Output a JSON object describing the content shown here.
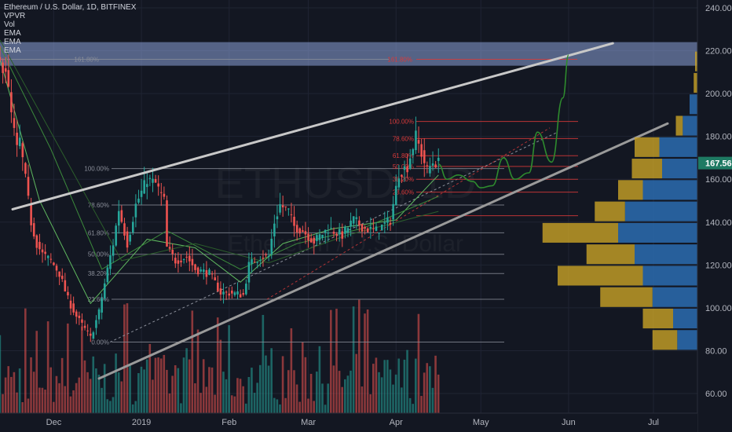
{
  "legend": {
    "symbol": "Ethereum / U.S. Dollar, 1D, BITFINEX",
    "indicators": [
      "VPVR",
      "Vol",
      "EMA",
      "EMA",
      "EMA"
    ]
  },
  "watermark": {
    "ticker": "ETHUSD, 1D",
    "name": "Ethereum / U.S. Dollar"
  },
  "price_badge": {
    "value": "167.56",
    "color": "#1e7a63"
  },
  "colors": {
    "up": "#26a69a",
    "down": "#ef5350",
    "channel": "#c8c8c8",
    "projection": "#2e8b2e",
    "zone": "#8da3d9",
    "fib_left": "#8a8e99",
    "fib_right": "#d93a3a",
    "vp_up": "#2b6cb0",
    "vp_down": "#c9a227"
  },
  "chart_data": {
    "type": "candlestick",
    "title": "Ethereum / U.S. Dollar, 1D, BITFINEX",
    "xlabel": "",
    "ylabel": "",
    "ylim": [
      52,
      245
    ],
    "y_ticks": [
      60,
      80,
      100,
      120,
      140,
      160,
      180,
      200,
      220,
      240
    ],
    "x_ticks": [
      "Dec",
      "2019",
      "Feb",
      "Mar",
      "Apr",
      "May",
      "Jun",
      "Jul"
    ],
    "last_price": 167.56,
    "price_path": [
      [
        "2018-11-12",
        214
      ],
      [
        "2018-11-14",
        212
      ],
      [
        "2018-11-16",
        190
      ],
      [
        "2018-11-18",
        174
      ],
      [
        "2018-11-19",
        178
      ],
      [
        "2018-11-21",
        160
      ],
      [
        "2018-11-23",
        140
      ],
      [
        "2018-11-25",
        130
      ],
      [
        "2018-11-27",
        125
      ],
      [
        "2018-11-30",
        122
      ],
      [
        "2018-12-03",
        116
      ],
      [
        "2018-12-06",
        104
      ],
      [
        "2018-12-09",
        96
      ],
      [
        "2018-12-11",
        92
      ],
      [
        "2018-12-14",
        86
      ],
      [
        "2018-12-17",
        98
      ],
      [
        "2018-12-20",
        118
      ],
      [
        "2018-12-22",
        130
      ],
      [
        "2018-12-24",
        146
      ],
      [
        "2018-12-27",
        130
      ],
      [
        "2018-12-30",
        148
      ],
      [
        "2019-01-03",
        160
      ],
      [
        "2019-01-06",
        158
      ],
      [
        "2019-01-09",
        150
      ],
      [
        "2019-01-10",
        128
      ],
      [
        "2019-01-13",
        122
      ],
      [
        "2019-01-17",
        124
      ],
      [
        "2019-01-20",
        118
      ],
      [
        "2019-01-25",
        116
      ],
      [
        "2019-01-29",
        107
      ],
      [
        "2019-02-01",
        107
      ],
      [
        "2019-02-06",
        106
      ],
      [
        "2019-02-08",
        120
      ],
      [
        "2019-02-12",
        124
      ],
      [
        "2019-02-15",
        124
      ],
      [
        "2019-02-17",
        140
      ],
      [
        "2019-02-19",
        148
      ],
      [
        "2019-02-22",
        145
      ],
      [
        "2019-02-24",
        138
      ],
      [
        "2019-02-27",
        136
      ],
      [
        "2019-03-03",
        131
      ],
      [
        "2019-03-08",
        137
      ],
      [
        "2019-03-13",
        134
      ],
      [
        "2019-03-17",
        141
      ],
      [
        "2019-03-21",
        137
      ],
      [
        "2019-03-25",
        136
      ],
      [
        "2019-03-30",
        141
      ],
      [
        "2019-04-02",
        163
      ],
      [
        "2019-04-05",
        166
      ],
      [
        "2019-04-08",
        180
      ],
      [
        "2019-04-10",
        172
      ],
      [
        "2019-04-12",
        164
      ],
      [
        "2019-04-14",
        168
      ],
      [
        "2019-04-16",
        167.56
      ]
    ],
    "ema_lines": [
      {
        "name": "EMA",
        "points": [
          [
            "2018-11-12",
            216
          ],
          [
            "2018-11-26",
            150
          ],
          [
            "2018-12-14",
            102
          ],
          [
            "2019-01-03",
            132
          ],
          [
            "2019-01-20",
            128
          ],
          [
            "2019-02-05",
            112
          ],
          [
            "2019-02-20",
            130
          ],
          [
            "2019-03-10",
            137
          ],
          [
            "2019-04-01",
            141
          ],
          [
            "2019-04-16",
            162
          ]
        ]
      },
      {
        "name": "EMA",
        "points": [
          [
            "2018-11-12",
            222
          ],
          [
            "2018-11-30",
            174
          ],
          [
            "2018-12-18",
            118
          ],
          [
            "2019-01-10",
            136
          ],
          [
            "2019-02-05",
            118
          ],
          [
            "2019-02-25",
            130
          ],
          [
            "2019-03-20",
            137
          ],
          [
            "2019-04-16",
            152
          ]
        ]
      },
      {
        "name": "EMA",
        "points": [
          [
            "2018-11-12",
            225
          ],
          [
            "2018-12-05",
            170
          ],
          [
            "2018-12-25",
            122
          ],
          [
            "2019-01-20",
            130
          ],
          [
            "2019-02-15",
            121
          ],
          [
            "2019-03-15",
            134
          ],
          [
            "2019-04-16",
            145
          ]
        ]
      }
    ],
    "volume": {
      "min": 1,
      "max": 14
    },
    "channel_upper": [
      [
        "2018-11-12",
        146
      ],
      [
        "2019-05-31",
        222
      ]
    ],
    "channel_lower": [
      [
        "2018-12-15",
        67
      ],
      [
        "2019-06-16",
        186
      ]
    ],
    "resistance_zone": [
      213,
      224
    ],
    "fib_left": {
      "range": [
        84,
        165
      ],
      "levels": [
        {
          "label": "161.80%",
          "price": 216
        },
        {
          "label": "100.00%",
          "price": 165
        },
        {
          "label": "78.60%",
          "price": 148
        },
        {
          "label": "61.80%",
          "price": 135
        },
        {
          "label": "50.00%",
          "price": 125
        },
        {
          "label": "38.20%",
          "price": 116
        },
        {
          "label": "23.60%",
          "price": 104
        },
        {
          "label": "0.00%",
          "price": 84
        }
      ]
    },
    "fib_right": {
      "levels": [
        {
          "label": "161.80%",
          "price": 216
        },
        {
          "label": "100.00%",
          "price": 187
        },
        {
          "label": "78.60%",
          "price": 179
        },
        {
          "label": "61.80%",
          "price": 171
        },
        {
          "label": "50.00%",
          "price": 166
        },
        {
          "label": "38.20%",
          "price": 160
        },
        {
          "label": "23.60%",
          "price": 154
        }
      ],
      "extra_line": 143
    },
    "projection": [
      [
        "2019-04-16",
        167
      ],
      [
        "2019-04-19",
        160
      ],
      [
        "2019-04-23",
        162
      ],
      [
        "2019-04-28",
        159
      ],
      [
        "2019-05-01",
        156
      ],
      [
        "2019-05-05",
        157
      ],
      [
        "2019-05-09",
        170
      ],
      [
        "2019-05-13",
        160
      ],
      [
        "2019-05-18",
        163
      ],
      [
        "2019-05-21",
        182
      ],
      [
        "2019-05-26",
        168
      ],
      [
        "2019-05-30",
        198
      ],
      [
        "2019-06-01",
        218
      ]
    ],
    "volume_profile": [
      {
        "price": 215,
        "up": 0.0,
        "down": 0.04
      },
      {
        "price": 205,
        "up": 0.0,
        "down": 0.05
      },
      {
        "price": 195,
        "up": 0.08,
        "down": 0.0
      },
      {
        "price": 185,
        "up": 0.13,
        "down": 0.05
      },
      {
        "price": 175,
        "up": 0.3,
        "down": 0.18
      },
      {
        "price": 165,
        "up": 0.28,
        "down": 0.22
      },
      {
        "price": 155,
        "up": 0.42,
        "down": 0.18
      },
      {
        "price": 145,
        "up": 0.55,
        "down": 0.22
      },
      {
        "price": 135,
        "up": 0.6,
        "down": 0.55
      },
      {
        "price": 125,
        "up": 0.48,
        "down": 0.35
      },
      {
        "price": 115,
        "up": 0.42,
        "down": 0.62
      },
      {
        "price": 105,
        "up": 0.35,
        "down": 0.38
      },
      {
        "price": 95,
        "up": 0.2,
        "down": 0.22
      },
      {
        "price": 85,
        "up": 0.17,
        "down": 0.18
      }
    ]
  }
}
